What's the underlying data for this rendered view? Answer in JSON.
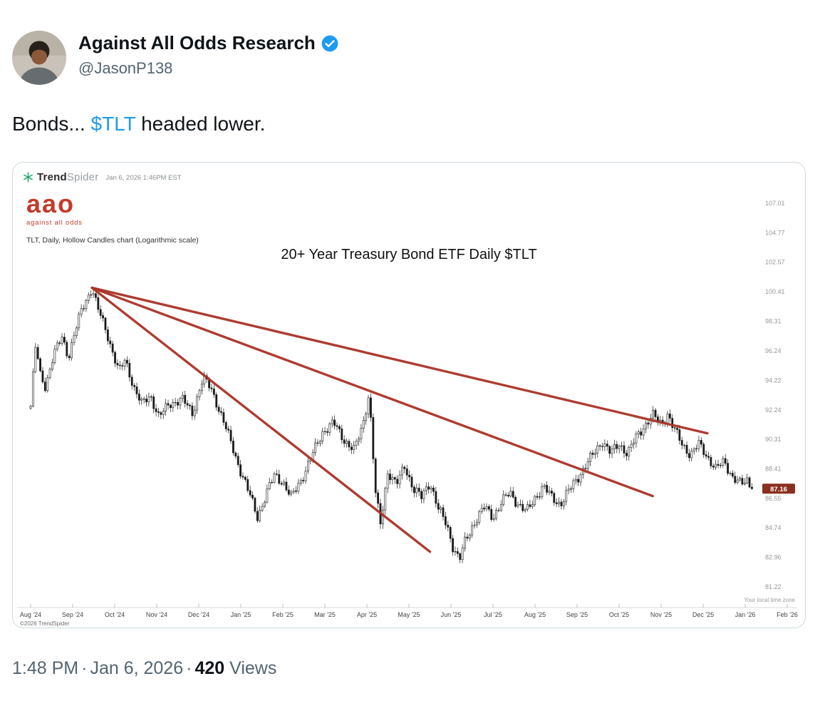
{
  "tweet": {
    "author": "Against All Odds Research",
    "handle": "@JasonP138",
    "text": {
      "part1": "Bonds... ",
      "cashtag": "$TLT",
      "part2": " headed lower."
    },
    "meta": {
      "time": "1:48 PM",
      "separator": "·",
      "date": "Jan 6, 2026",
      "views_count": "420",
      "views_label": "Views"
    }
  },
  "chart": {
    "provider_bold": "Trend",
    "provider_light": "Spider",
    "timestamp": "Jan 6, 2026 1:46PM EST",
    "logo_text": "aao",
    "logo_subtext": "against all odds",
    "meta_line": "TLT, Daily, Hollow Candles chart (Logarithmic scale)",
    "title": "20+ Year Treasury Bond ETF Daily $TLT",
    "copyright": "©2026 TrendSpider",
    "timezone_note": "Your local time zone"
  },
  "chart_data": {
    "type": "candlestick",
    "symbol": "TLT",
    "timeframe": "Daily",
    "style": "Hollow Candles",
    "scale": "Logarithmic",
    "title": "20+ Year Treasury Bond ETF Daily $TLT",
    "last_price": 87.16,
    "y_axis_labels": [
      107.01,
      104.77,
      102.57,
      100.41,
      98.31,
      96.24,
      94.22,
      92.24,
      90.31,
      88.41,
      86.55,
      84.74,
      82.96,
      81.22
    ],
    "x_axis_labels": [
      "Aug '24",
      "Sep '24",
      "Oct '24",
      "Nov '24",
      "Dec '24",
      "Jan '25",
      "Feb '25",
      "Mar '25",
      "Apr '25",
      "May '25",
      "Jun '25",
      "Jul '25",
      "Aug '25",
      "Sep '25",
      "Oct '25",
      "Nov '25",
      "Dec '25",
      "Jan '26",
      "Feb '26"
    ],
    "price_path_months_close": [
      [
        0.0,
        92.5
      ],
      [
        0.13,
        97.0
      ],
      [
        0.2,
        94.8
      ],
      [
        0.35,
        93.8
      ],
      [
        0.55,
        96.0
      ],
      [
        0.75,
        97.2
      ],
      [
        0.9,
        95.8
      ],
      [
        1.05,
        97.5
      ],
      [
        1.2,
        99.0
      ],
      [
        1.46,
        100.7
      ],
      [
        1.6,
        99.2
      ],
      [
        1.75,
        98.0
      ],
      [
        1.95,
        96.2
      ],
      [
        2.1,
        94.8
      ],
      [
        2.25,
        95.6
      ],
      [
        2.45,
        93.8
      ],
      [
        2.65,
        92.6
      ],
      [
        2.85,
        93.2
      ],
      [
        3.05,
        91.8
      ],
      [
        3.3,
        92.6
      ],
      [
        3.6,
        93.0
      ],
      [
        3.85,
        92.0
      ],
      [
        4.1,
        94.4
      ],
      [
        4.3,
        93.6
      ],
      [
        4.55,
        91.8
      ],
      [
        4.75,
        90.2
      ],
      [
        4.95,
        88.6
      ],
      [
        5.15,
        87.2
      ],
      [
        5.4,
        85.4
      ],
      [
        5.6,
        86.8
      ],
      [
        5.8,
        88.0
      ],
      [
        6.0,
        87.6
      ],
      [
        6.2,
        86.6
      ],
      [
        6.45,
        87.8
      ],
      [
        6.7,
        89.3
      ],
      [
        6.95,
        90.8
      ],
      [
        7.2,
        91.4
      ],
      [
        7.45,
        90.3
      ],
      [
        7.7,
        89.6
      ],
      [
        7.9,
        91.2
      ],
      [
        8.05,
        93.4
      ],
      [
        8.2,
        87.0
      ],
      [
        8.32,
        84.9
      ],
      [
        8.5,
        88.3
      ],
      [
        8.7,
        87.4
      ],
      [
        8.9,
        88.6
      ],
      [
        9.1,
        87.2
      ],
      [
        9.3,
        86.6
      ],
      [
        9.5,
        87.6
      ],
      [
        9.7,
        85.9
      ],
      [
        9.9,
        84.9
      ],
      [
        10.05,
        83.6
      ],
      [
        10.2,
        82.8
      ],
      [
        10.35,
        84.0
      ],
      [
        10.6,
        85.3
      ],
      [
        10.8,
        86.0
      ],
      [
        11.0,
        85.4
      ],
      [
        11.2,
        86.3
      ],
      [
        11.4,
        86.9
      ],
      [
        11.6,
        86.2
      ],
      [
        11.8,
        85.7
      ],
      [
        12.0,
        86.6
      ],
      [
        12.2,
        87.3
      ],
      [
        12.4,
        86.6
      ],
      [
        12.6,
        86.2
      ],
      [
        12.8,
        87.0
      ],
      [
        13.0,
        87.8
      ],
      [
        13.2,
        88.6
      ],
      [
        13.4,
        89.4
      ],
      [
        13.6,
        90.2
      ],
      [
        13.8,
        89.4
      ],
      [
        14.0,
        90.0
      ],
      [
        14.2,
        89.4
      ],
      [
        14.4,
        90.4
      ],
      [
        14.6,
        91.2
      ],
      [
        14.8,
        91.9
      ],
      [
        15.0,
        91.3
      ],
      [
        15.15,
        92.0
      ],
      [
        15.3,
        91.0
      ],
      [
        15.5,
        90.0
      ],
      [
        15.7,
        89.3
      ],
      [
        15.9,
        90.0
      ],
      [
        16.1,
        89.2
      ],
      [
        16.3,
        88.4
      ],
      [
        16.5,
        88.9
      ],
      [
        16.7,
        87.9
      ],
      [
        16.9,
        87.4
      ],
      [
        17.05,
        87.7
      ],
      [
        17.16,
        87.16
      ]
    ],
    "trend_lines": [
      {
        "from": [
          1.46,
          100.7
        ],
        "to": [
          16.1,
          90.7
        ]
      },
      {
        "from": [
          1.46,
          100.7
        ],
        "to": [
          14.8,
          86.7
        ]
      },
      {
        "from": [
          1.46,
          100.7
        ],
        "to": [
          9.5,
          83.3
        ]
      }
    ],
    "colors": {
      "trend_line": "#a93226",
      "price_badge_bg": "#8b2f1f",
      "logo_red": "#c43b2a",
      "link_blue": "#1d9bf0",
      "provider_green": "#35b37e",
      "candle": "#1a1a1a"
    }
  }
}
